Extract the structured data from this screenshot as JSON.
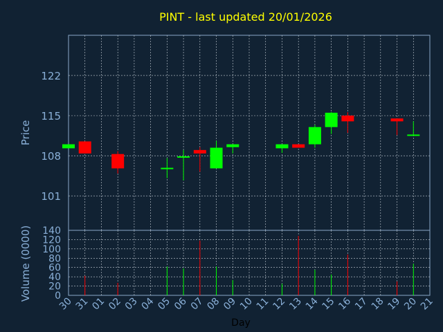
{
  "chart_data": [
    {
      "type": "candlestick",
      "title": "PINT - last updated 20/01/2026",
      "xlabel": "Day",
      "ylabel": "Price",
      "ylim": [
        95,
        129
      ],
      "yticks": [
        101,
        108,
        115,
        122
      ],
      "x_tick_labels": [
        "30",
        "31",
        "01",
        "02",
        "03",
        "04",
        "05",
        "06",
        "07",
        "08",
        "09",
        "10",
        "11",
        "12",
        "13",
        "14",
        "15",
        "16",
        "17",
        "18",
        "19",
        "20",
        "21"
      ],
      "grid": true,
      "candles": [
        {
          "day": "30",
          "open": 109.3,
          "high": 110.0,
          "low": 109.3,
          "close": 110.0
        },
        {
          "day": "31",
          "open": 110.5,
          "high": 110.5,
          "low": 108.4,
          "close": 108.4
        },
        {
          "day": "02",
          "open": 108.3,
          "high": 108.8,
          "low": 104.9,
          "close": 105.8
        },
        {
          "day": "05",
          "open": 105.8,
          "high": 107.6,
          "low": 104.1,
          "close": 105.9
        },
        {
          "day": "06",
          "open": 107.7,
          "high": 109.0,
          "low": 103.7,
          "close": 107.9
        },
        {
          "day": "07",
          "open": 109.0,
          "high": 109.5,
          "low": 105.2,
          "close": 108.4
        },
        {
          "day": "08",
          "open": 105.8,
          "high": 110.6,
          "low": 105.8,
          "close": 109.4
        },
        {
          "day": "09",
          "open": 109.5,
          "high": 110.0,
          "low": 108.4,
          "close": 110.0
        },
        {
          "day": "12",
          "open": 109.3,
          "high": 110.0,
          "low": 108.5,
          "close": 110.0
        },
        {
          "day": "13",
          "open": 110.0,
          "high": 110.0,
          "low": 109.4,
          "close": 109.4
        },
        {
          "day": "14",
          "open": 110.0,
          "high": 113.4,
          "low": 109.4,
          "close": 113.0
        },
        {
          "day": "15",
          "open": 113.0,
          "high": 115.6,
          "low": 111.8,
          "close": 115.5
        },
        {
          "day": "16",
          "open": 115.0,
          "high": 115.6,
          "low": 112.0,
          "close": 114.0
        },
        {
          "day": "19",
          "open": 114.5,
          "high": 114.5,
          "low": 111.6,
          "close": 114.0
        },
        {
          "day": "20",
          "open": 111.6,
          "high": 114.0,
          "low": 111.6,
          "close": 111.7
        }
      ]
    },
    {
      "type": "bar",
      "ylabel": "Volume (0000)",
      "ylim": [
        0,
        140
      ],
      "yticks": [
        0,
        20,
        40,
        60,
        80,
        100,
        120,
        140
      ],
      "xlabel": "Day",
      "grid": true,
      "values": [
        {
          "day": "31",
          "volume": 42
        },
        {
          "day": "02",
          "volume": 27
        },
        {
          "day": "05",
          "volume": 62
        },
        {
          "day": "06",
          "volume": 58
        },
        {
          "day": "07",
          "volume": 118
        },
        {
          "day": "08",
          "volume": 62
        },
        {
          "day": "09",
          "volume": 33
        },
        {
          "day": "12",
          "volume": 25
        },
        {
          "day": "13",
          "volume": 128
        },
        {
          "day": "14",
          "volume": 55
        },
        {
          "day": "15",
          "volume": 45
        },
        {
          "day": "16",
          "volume": 88
        },
        {
          "day": "19",
          "volume": 30
        },
        {
          "day": "20",
          "volume": 68
        }
      ]
    }
  ],
  "colors": {
    "background": "#112233",
    "frame": "#8aa8c8",
    "grid": "#c8d0d8",
    "title": "#ffff00",
    "axis_text": "#8ab0d8",
    "label_text": "#000000",
    "up": "#00ff00",
    "down": "#ff0000"
  }
}
